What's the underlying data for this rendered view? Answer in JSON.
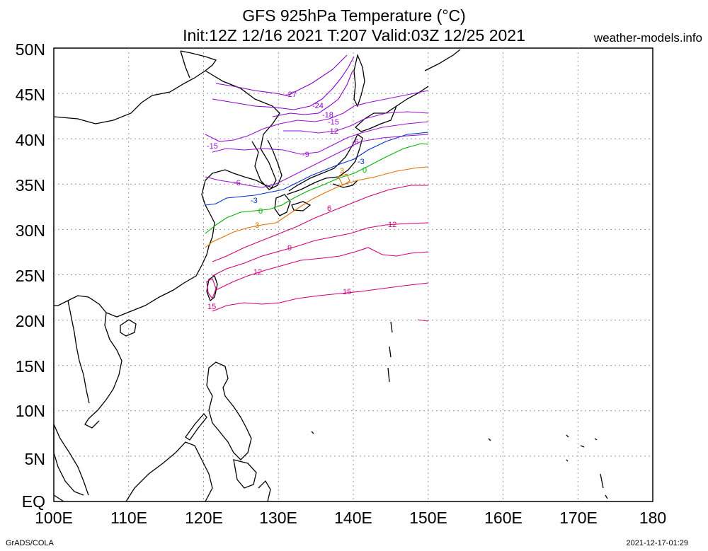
{
  "header": {
    "title": "GFS 925hPa Temperature (°C)",
    "subtitle": "Init:12Z 12/16 2021 T:207 Valid:03Z 12/25 2021",
    "site": "weather-models.info"
  },
  "footer": {
    "left": "GrADS/COLA",
    "right": "2021-12-17-01:29"
  },
  "map": {
    "lon_range": [
      100,
      180
    ],
    "lat_range": [
      0,
      50
    ],
    "lon_ticks": [
      "100E",
      "110E",
      "120E",
      "130E",
      "140E",
      "150E",
      "160E",
      "170E",
      "180"
    ],
    "lat_ticks": [
      "EQ",
      "5N",
      "10N",
      "15N",
      "20N",
      "25N",
      "30N",
      "35N",
      "40N",
      "45N",
      "50N"
    ],
    "grid": true,
    "contours": [
      {
        "value": -27,
        "label": "-27",
        "color": "#8a00c8"
      },
      {
        "value": -24,
        "label": "-24",
        "color": "#8a00c8"
      },
      {
        "value": -18,
        "label": "-18",
        "color": "#8a00c8"
      },
      {
        "value": -15,
        "label": "-15",
        "color": "#9a10d0"
      },
      {
        "value": -12,
        "label": "-12",
        "color": "#9a10d0"
      },
      {
        "value": -9,
        "label": "-9",
        "color": "#9a10d0"
      },
      {
        "value": -6,
        "label": "-6",
        "color": "#9a10d0"
      },
      {
        "value": -3,
        "label": "-3",
        "color": "#0030c8"
      },
      {
        "value": 0,
        "label": "0",
        "color": "#00b400"
      },
      {
        "value": 3,
        "label": "3",
        "color": "#e07000"
      },
      {
        "value": 6,
        "label": "6",
        "color": "#d0007a"
      },
      {
        "value": 9,
        "label": "9",
        "color": "#d0007a"
      },
      {
        "value": 12,
        "label": "12",
        "color": "#d0007a"
      },
      {
        "value": 15,
        "label": "15",
        "color": "#d0007a"
      }
    ]
  }
}
